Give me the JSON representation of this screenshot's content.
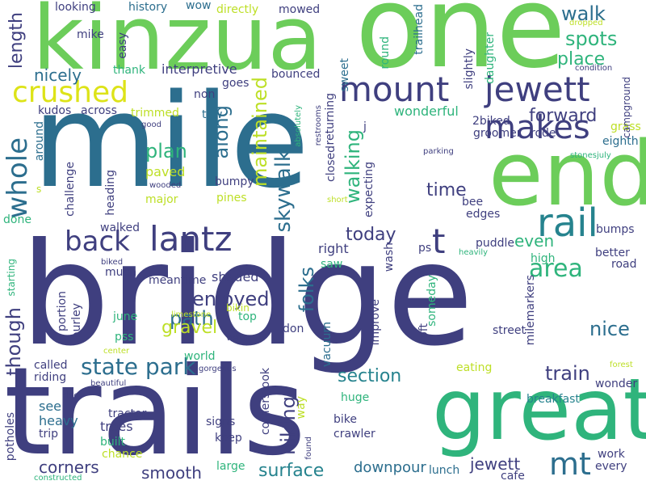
{
  "words": {
    "bridge": "bridge",
    "mile": "mile",
    "trails": "trails",
    "kinzua": "kinzua",
    "one": "one",
    "end": "end",
    "great": "great",
    "rail": "rail",
    "mount": "mount",
    "jewett": "jewett",
    "makes": "makes",
    "crushed": "crushed",
    "lantz": "lantz",
    "back": "back",
    "state": "state",
    "park": "park",
    "whole": "whole",
    "area": "area",
    "mt": "mt",
    "t": "t",
    "skywalk": "skywalk",
    "walk": "walk",
    "spots": "spots",
    "place": "place",
    "forward": "forward",
    "length": "length",
    "nicely": "nicely",
    "plan": "plan",
    "along": "along",
    "maintained": "maintained",
    "enjoyed": "enjoyed",
    "path": "path",
    "gravel": "gravel",
    "folks": "folks",
    "today": "today",
    "walking": "walking",
    "hiking": "hiking",
    "though": "though",
    "nice": "nice",
    "section": "section",
    "train": "train",
    "surface": "surface",
    "smooth": "smooth",
    "corners": "corners",
    "jewett_lower": "jewett",
    "downpour": "downpour",
    "time": "time",
    "grass": "grass",
    "even": "even",
    "puddle": "puddle",
    "better": "better",
    "bumps": "bumps",
    "eighth": "eighth",
    "edges": "edges",
    "right": "right",
    "shaded": "shaded",
    "paved": "paved",
    "non": "non",
    "trimmed": "trimmed",
    "wonderful": "wonderful",
    "interpretive": "interpretive",
    "goes": "goes",
    "bounced": "bounced",
    "mowed": "mowed",
    "directly": "directly",
    "history": "history",
    "wow": "wow",
    "looking": "looking",
    "mike": "mike",
    "easy": "easy",
    "thank": "thank",
    "kudos": "kudos",
    "across": "across",
    "tow": "tow",
    "good": "good",
    "sweet": "sweet",
    "round": "round",
    "trailhead": "trailhead",
    "daughter": "daughter",
    "slightly": "slightly",
    "dropped": "dropped",
    "condition": "condition",
    "campground": "campground",
    "biked_2": "2biked",
    "groomer": "groomer",
    "rode": "rode",
    "parking": "parking",
    "stonesjuly": "stonesjuly",
    "closed": "closed",
    "returning": "returning",
    "absolutely": "absolutely",
    "j": "j",
    "expecting": "expecting",
    "restrooms": "restrooms",
    "short": "short",
    "bee": "bee",
    "wash": "wash",
    "ps": "ps",
    "heavily": "heavily",
    "high": "high",
    "road": "road",
    "challenge": "challenge",
    "heading": "heading",
    "wooded": "wooded",
    "major": "major",
    "pines": "pines",
    "bumpy": "bumpy",
    "around": "around",
    "s": "s",
    "done": "done",
    "starting": "starting",
    "walked": "walked",
    "meantime": "meantime",
    "much": "much",
    "biked": "biked",
    "bikin": "bikin",
    "don": "don",
    "top": "top",
    "june": "june",
    "portion": "portion",
    "burley": "burley",
    "limestone": "limestone",
    "improve": "improve",
    "saw": "saw",
    "someday": "someday",
    "soft": "soft",
    "milemarkers": "milemarkers",
    "street": "street",
    "pss": "pss",
    "center": "center",
    "world": "world",
    "visitor": "visitor",
    "vacuum": "vacuum",
    "called": "called",
    "riding": "riding",
    "gorgeous": "gorgeous",
    "cornerstook": "cornerstook",
    "eating": "eating",
    "forest": "forest",
    "wonder": "wonder",
    "ride": "ride",
    "beautiful": "beautiful",
    "see": "see",
    "heavy": "heavy",
    "trip": "trip",
    "built": "built",
    "chance": "chance",
    "tractor": "tractor",
    "trees": "trees",
    "signs": "signs",
    "keep": "keep",
    "large": "large",
    "way": "way",
    "huge": "huge",
    "bike": "bike",
    "crawler": "crawler",
    "found": "found",
    "breakfast": "breakfast",
    "work": "work",
    "every": "every",
    "cafe": "cafe",
    "lunch": "lunch",
    "potholes": "potholes",
    "constructed": "constructed"
  },
  "colors": {
    "dark_purple": "#3f3f7f",
    "blue": "#2c6e8e",
    "teal": "#26838e",
    "green": "#2fb47c",
    "light_green": "#6ccd5a",
    "lime": "#bddf26",
    "yellow": "#dde318"
  }
}
